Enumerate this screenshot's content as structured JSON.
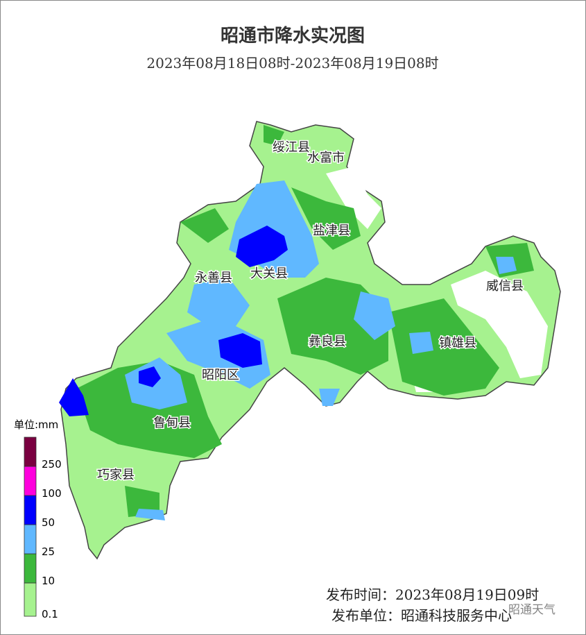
{
  "header": {
    "title": "昭通市降水实况图",
    "subtitle": "2023年08月18日08时-2023年08月19日08时"
  },
  "regions": [
    "绥江县",
    "水富市",
    "盐津县",
    "永善县",
    "大关县",
    "威信县",
    "彝良县",
    "镇雄县",
    "昭阳区",
    "鲁甸县",
    "巧家县"
  ],
  "legend": {
    "unit": "单位:mm",
    "levels": [
      {
        "value": 0.1,
        "color": "#a6f28f"
      },
      {
        "value": 10,
        "color": "#3cb83c"
      },
      {
        "value": 25,
        "color": "#60b8ff"
      },
      {
        "value": 50,
        "color": "#0000fe"
      },
      {
        "value": 100,
        "color": "#fe00dd"
      },
      {
        "value": 250,
        "color": "#7a0040"
      }
    ]
  },
  "footer": {
    "time": "发布时间：2023年08月19日09时",
    "unit": "发布单位：昭通科技服务中心",
    "watermark": "昭通天气"
  }
}
